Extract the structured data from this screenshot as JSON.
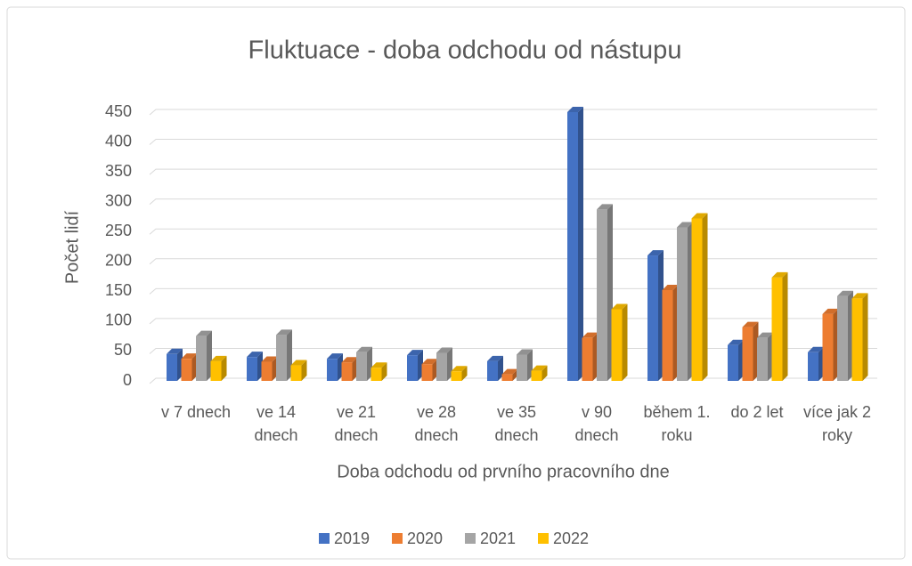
{
  "chart_data": {
    "type": "bar",
    "title": "Fluktuace - doba odchodu od nástupu",
    "xlabel": "Doba odchodu od prvního pracovního dne",
    "ylabel": "Počet lidí",
    "categories": [
      "v 7 dnech",
      "ve 14 dnech",
      "ve 21 dnech",
      "ve 28 dnech",
      "ve 35 dnech",
      "v 90 dnech",
      "během 1. roku",
      "do 2 let",
      "více jak 2 roky"
    ],
    "series": [
      {
        "name": "2019",
        "color": "#4472c4",
        "values": [
          45,
          40,
          37,
          43,
          33,
          450,
          210,
          60,
          48
        ]
      },
      {
        "name": "2020",
        "color": "#ed7d31",
        "values": [
          37,
          32,
          31,
          28,
          11,
          72,
          152,
          90,
          112
        ]
      },
      {
        "name": "2021",
        "color": "#a5a5a5",
        "values": [
          75,
          77,
          48,
          47,
          44,
          287,
          257,
          72,
          142
        ]
      },
      {
        "name": "2022",
        "color": "#ffc000",
        "values": [
          33,
          26,
          22,
          16,
          17,
          120,
          272,
          173,
          138
        ]
      }
    ],
    "ylim": [
      0,
      450
    ],
    "yticks": [
      0,
      50,
      100,
      150,
      200,
      250,
      300,
      350,
      400,
      450
    ],
    "grid": true,
    "legend": "bottom"
  }
}
